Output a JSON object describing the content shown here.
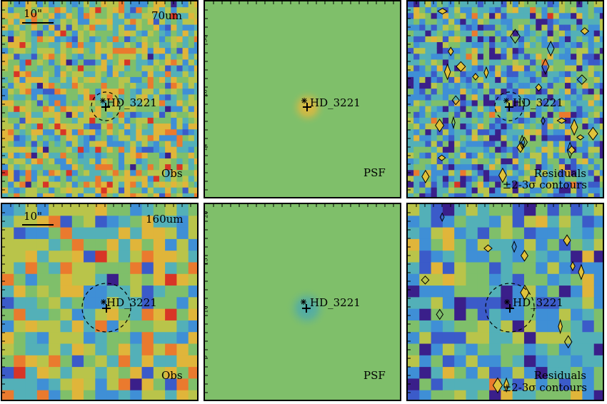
{
  "figure": {
    "target_name": "HD_3221",
    "scale_bar_label": "10\"",
    "rows": [
      {
        "band": "70um",
        "panels": [
          {
            "kind": "observed",
            "label": "Obs"
          },
          {
            "kind": "psf",
            "label": "PSF"
          },
          {
            "kind": "residual",
            "label_line1": "Residuals",
            "label_line2": "±2-3σ contours"
          }
        ],
        "psf_axis_ticks": [
          "36",
          "28",
          "14"
        ]
      },
      {
        "band": "160um",
        "panels": [
          {
            "kind": "observed",
            "label": "Obs"
          },
          {
            "kind": "psf",
            "label": "PSF"
          },
          {
            "kind": "residual",
            "label_line1": "Residuals",
            "label_line2": "±2-3σ contours"
          }
        ],
        "psf_axis_ticks": [
          "20",
          "15",
          "10",
          "5"
        ]
      }
    ],
    "colors": {
      "background_green": "#7fbf6a",
      "colormap": [
        "#3a1f8a",
        "#3b5bc9",
        "#3f8fd6",
        "#53b0b8",
        "#7fbf6a",
        "#b9c44a",
        "#e0b53a",
        "#ea7a2e",
        "#d83526"
      ]
    }
  }
}
